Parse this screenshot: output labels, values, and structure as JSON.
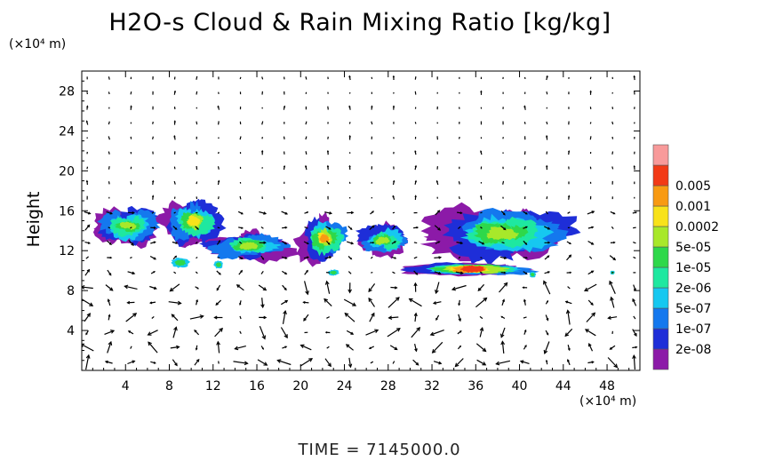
{
  "chart_data": {
    "type": "heatmap",
    "title": "H2O-s Cloud & Rain Mixing Ratio [kg/kg]",
    "ylabel": "Height",
    "x_unit_label": "(×10⁴ m)",
    "y_unit_label": "(×10⁴ m)",
    "xlim": [
      0,
      51
    ],
    "ylim": [
      0,
      30
    ],
    "x_ticks": [
      "4",
      "8",
      "12",
      "16",
      "20",
      "24",
      "28",
      "32",
      "36",
      "40",
      "44",
      "48"
    ],
    "x_tick_values": [
      4,
      8,
      12,
      16,
      20,
      24,
      28,
      32,
      36,
      40,
      44,
      48
    ],
    "y_ticks": [
      "4",
      "8",
      "12",
      "16",
      "20",
      "24",
      "28"
    ],
    "y_tick_values": [
      4,
      8,
      12,
      16,
      20,
      24,
      28
    ],
    "colorbar": {
      "levels": [
        "2e-08",
        "1e-07",
        "5e-07",
        "2e-06",
        "1e-05",
        "5e-05",
        "0.0002",
        "0.001",
        "0.005"
      ],
      "colors": [
        "#8c1aa8",
        "#1e2ed8",
        "#1478ee",
        "#16c8f0",
        "#1ee8a0",
        "#2ed84a",
        "#a8e82a",
        "#f8e21a",
        "#f89a12",
        "#f23a16",
        "#f89a9a"
      ]
    },
    "cloud_regions": [
      {
        "x": [
          1,
          7.5
        ],
        "y": [
          12.5,
          16.5
        ],
        "peak": "5e-05"
      },
      {
        "x": [
          7.5,
          13
        ],
        "y": [
          12.5,
          17.5
        ],
        "peak": "0.0002"
      },
      {
        "x": [
          11.5,
          19
        ],
        "y": [
          11,
          14
        ],
        "peak": "5e-05"
      },
      {
        "x": [
          20,
          24.5
        ],
        "y": [
          11,
          15.5
        ],
        "peak": "0.001"
      },
      {
        "x": [
          25,
          30
        ],
        "y": [
          11,
          15
        ],
        "peak": "5e-05"
      },
      {
        "x": [
          32,
          45
        ],
        "y": [
          11,
          16.5
        ],
        "peak": "5e-05"
      },
      {
        "x": [
          30,
          41.5
        ],
        "y": [
          9.5,
          10.8
        ],
        "peak": "0.005"
      }
    ]
  },
  "footer": {
    "time_label": "TIME  =  7145000.0"
  }
}
